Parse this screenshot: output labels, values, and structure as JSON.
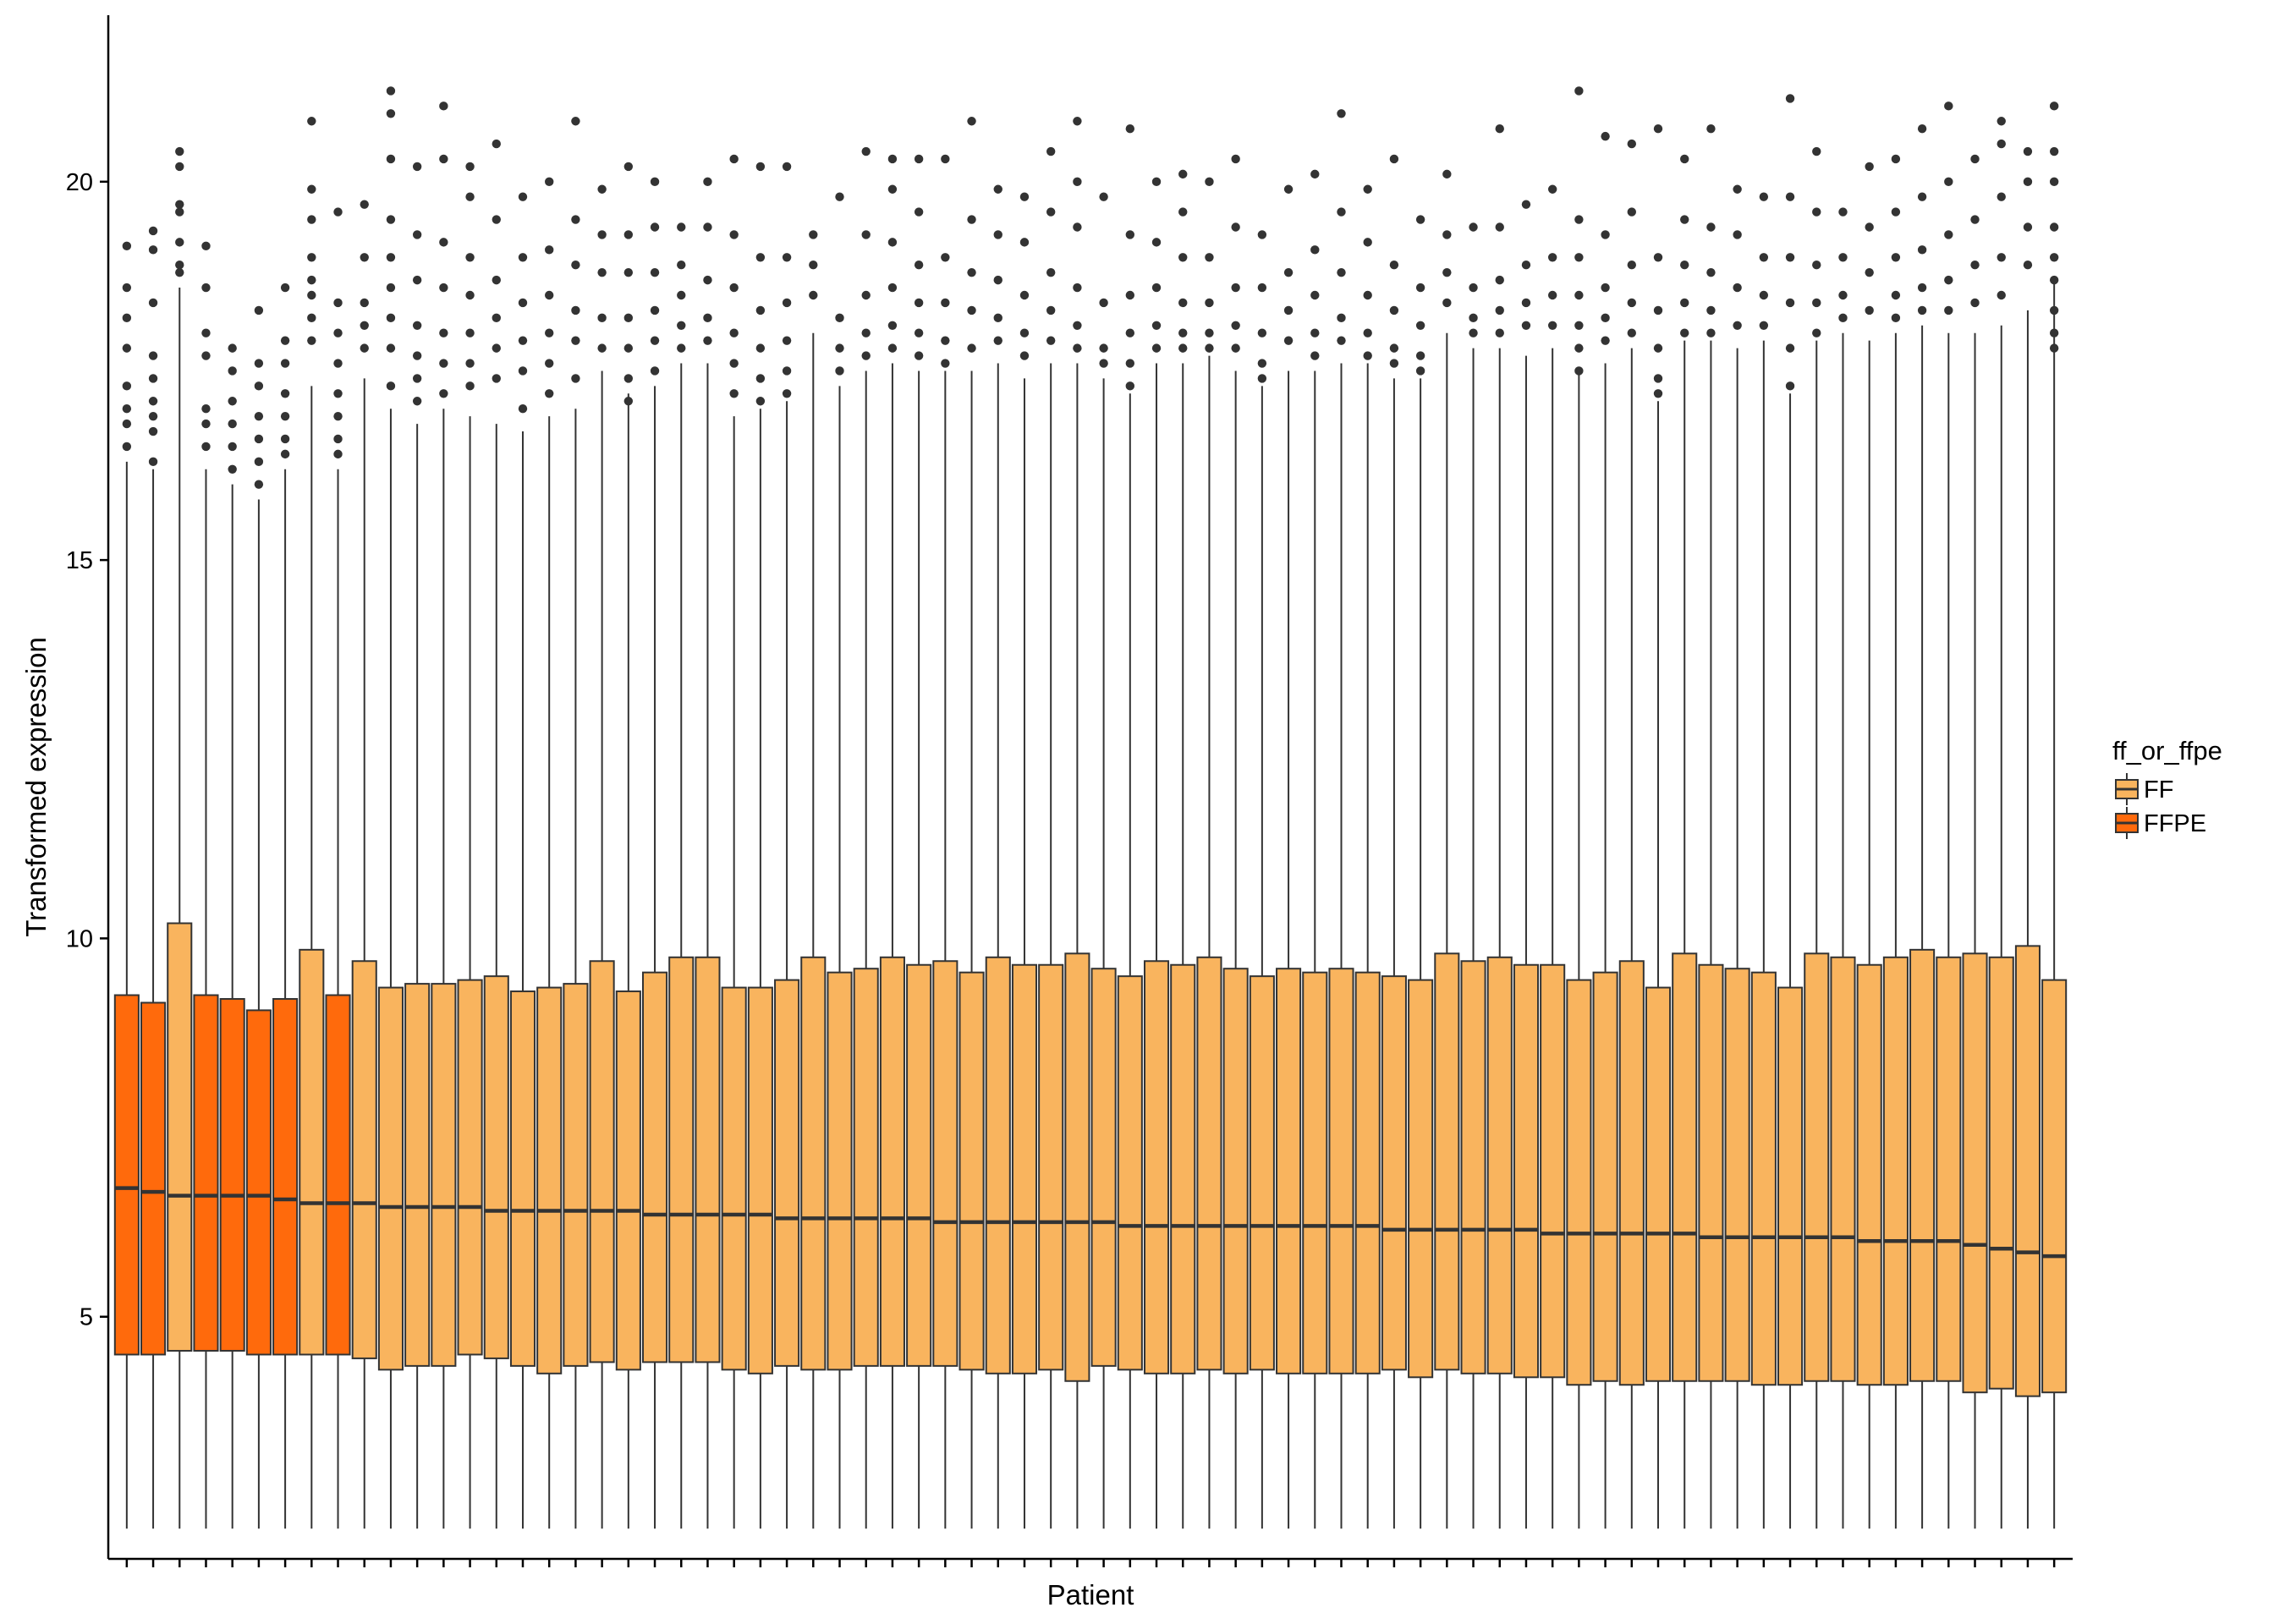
{
  "chart_data": {
    "type": "box",
    "xlabel": "Patient",
    "ylabel": "Transformed expression",
    "ylim": [
      1.8,
      22.2
    ],
    "yticks": [
      5,
      10,
      15,
      20
    ],
    "ytick_labels": [
      "5",
      "10",
      "15",
      "20"
    ],
    "grid": false,
    "legend": {
      "title": "ff_or_ffpe",
      "placement": "right",
      "entries": [
        {
          "label": "FF",
          "color": "#F9B45E"
        },
        {
          "label": "FFPE",
          "color": "#FF6A0C"
        }
      ]
    },
    "colors": {
      "FF": "#F9B45E",
      "FFPE": "#FF6A0C",
      "outlier": "#333333",
      "line": "#333333"
    },
    "whisker_low": 2.2,
    "boxes": [
      {
        "group": "FFPE",
        "median": 6.7,
        "q1": 4.5,
        "q3": 9.25,
        "whisker_high": 16.3,
        "outliers": [
          19.15,
          18.6,
          18.2,
          17.8,
          17.3,
          17.0,
          16.8,
          16.5
        ]
      },
      {
        "group": "FFPE",
        "median": 6.65,
        "q1": 4.5,
        "q3": 9.15,
        "whisker_high": 16.2,
        "outliers": [
          19.35,
          19.1,
          18.4,
          17.7,
          17.4,
          17.1,
          16.9,
          16.7,
          16.3
        ]
      },
      {
        "group": "FF",
        "median": 6.6,
        "q1": 4.55,
        "q3": 10.2,
        "whisker_high": 18.6,
        "outliers": [
          20.4,
          20.2,
          19.7,
          19.6,
          19.2,
          18.9,
          18.8
        ]
      },
      {
        "group": "FFPE",
        "median": 6.6,
        "q1": 4.55,
        "q3": 9.25,
        "whisker_high": 16.2,
        "outliers": [
          19.15,
          18.6,
          18.0,
          17.7,
          17.0,
          16.8,
          16.5
        ]
      },
      {
        "group": "FFPE",
        "median": 6.6,
        "q1": 4.55,
        "q3": 9.2,
        "whisker_high": 16.0,
        "outliers": [
          17.8,
          17.5,
          17.1,
          16.8,
          16.5,
          16.2
        ]
      },
      {
        "group": "FFPE",
        "median": 6.6,
        "q1": 4.5,
        "q3": 9.05,
        "whisker_high": 15.8,
        "outliers": [
          18.3,
          17.6,
          17.3,
          16.9,
          16.6,
          16.3,
          16.0
        ]
      },
      {
        "group": "FFPE",
        "median": 6.55,
        "q1": 4.5,
        "q3": 9.2,
        "whisker_high": 16.2,
        "outliers": [
          18.6,
          17.9,
          17.6,
          17.2,
          16.9,
          16.6,
          16.4
        ]
      },
      {
        "group": "FF",
        "median": 6.5,
        "q1": 4.5,
        "q3": 9.85,
        "whisker_high": 17.3,
        "outliers": [
          20.8,
          19.9,
          19.5,
          19.0,
          18.7,
          18.5,
          18.2,
          17.9
        ]
      },
      {
        "group": "FFPE",
        "median": 6.5,
        "q1": 4.5,
        "q3": 9.25,
        "whisker_high": 16.2,
        "outliers": [
          19.6,
          18.4,
          18.0,
          17.6,
          17.2,
          16.9,
          16.6,
          16.4
        ]
      },
      {
        "group": "FF",
        "median": 6.5,
        "q1": 4.45,
        "q3": 9.7,
        "whisker_high": 17.4,
        "outliers": [
          19.7,
          19.0,
          18.4,
          18.1,
          17.8
        ]
      },
      {
        "group": "FF",
        "median": 6.45,
        "q1": 4.3,
        "q3": 9.35,
        "whisker_high": 17.0,
        "outliers": [
          21.2,
          20.9,
          20.3,
          19.5,
          19.0,
          18.6,
          18.2,
          17.8,
          17.3
        ]
      },
      {
        "group": "FF",
        "median": 6.45,
        "q1": 4.35,
        "q3": 9.4,
        "whisker_high": 16.8,
        "outliers": [
          20.2,
          19.3,
          18.7,
          18.1,
          17.7,
          17.4,
          17.1
        ]
      },
      {
        "group": "FF",
        "median": 6.45,
        "q1": 4.35,
        "q3": 9.4,
        "whisker_high": 17.0,
        "outliers": [
          21.0,
          20.3,
          19.2,
          18.6,
          18.0,
          17.6,
          17.2
        ]
      },
      {
        "group": "FF",
        "median": 6.45,
        "q1": 4.5,
        "q3": 9.45,
        "whisker_high": 16.9,
        "outliers": [
          20.2,
          19.8,
          19.0,
          18.5,
          18.0,
          17.6,
          17.3
        ]
      },
      {
        "group": "FF",
        "median": 6.4,
        "q1": 4.45,
        "q3": 9.5,
        "whisker_high": 16.8,
        "outliers": [
          20.5,
          19.5,
          18.7,
          18.2,
          17.8,
          17.4
        ]
      },
      {
        "group": "FF",
        "median": 6.4,
        "q1": 4.35,
        "q3": 9.3,
        "whisker_high": 16.7,
        "outliers": [
          19.8,
          19.0,
          18.4,
          17.9,
          17.5,
          17.0
        ]
      },
      {
        "group": "FF",
        "median": 6.4,
        "q1": 4.25,
        "q3": 9.35,
        "whisker_high": 16.9,
        "outliers": [
          20.0,
          19.1,
          18.5,
          18.0,
          17.6,
          17.2
        ]
      },
      {
        "group": "FF",
        "median": 6.4,
        "q1": 4.35,
        "q3": 9.4,
        "whisker_high": 17.0,
        "outliers": [
          20.8,
          19.5,
          18.9,
          18.3,
          17.9,
          17.4
        ]
      },
      {
        "group": "FF",
        "median": 6.4,
        "q1": 4.4,
        "q3": 9.7,
        "whisker_high": 17.5,
        "outliers": [
          19.9,
          19.3,
          18.8,
          18.2,
          17.8
        ]
      },
      {
        "group": "FF",
        "median": 6.4,
        "q1": 4.3,
        "q3": 9.3,
        "whisker_high": 17.2,
        "outliers": [
          20.2,
          19.3,
          18.8,
          18.2,
          17.8,
          17.4,
          17.1
        ]
      },
      {
        "group": "FF",
        "median": 6.35,
        "q1": 4.4,
        "q3": 9.55,
        "whisker_high": 17.3,
        "outliers": [
          20.0,
          19.4,
          18.8,
          18.3,
          17.9,
          17.5
        ]
      },
      {
        "group": "FF",
        "median": 6.35,
        "q1": 4.4,
        "q3": 9.75,
        "whisker_high": 17.6,
        "outliers": [
          19.4,
          18.9,
          18.5,
          18.1,
          17.8
        ]
      },
      {
        "group": "FF",
        "median": 6.35,
        "q1": 4.4,
        "q3": 9.75,
        "whisker_high": 17.6,
        "outliers": [
          20.0,
          19.4,
          18.7,
          18.2,
          17.9
        ]
      },
      {
        "group": "FF",
        "median": 6.35,
        "q1": 4.3,
        "q3": 9.35,
        "whisker_high": 16.9,
        "outliers": [
          20.3,
          19.3,
          18.6,
          18.0,
          17.6,
          17.2
        ]
      },
      {
        "group": "FF",
        "median": 6.35,
        "q1": 4.25,
        "q3": 9.35,
        "whisker_high": 17.0,
        "outliers": [
          20.2,
          19.0,
          18.3,
          17.8,
          17.4,
          17.1
        ]
      },
      {
        "group": "FF",
        "median": 6.3,
        "q1": 4.35,
        "q3": 9.45,
        "whisker_high": 17.1,
        "outliers": [
          20.2,
          19.0,
          18.4,
          17.9,
          17.5,
          17.2
        ]
      },
      {
        "group": "FF",
        "median": 6.3,
        "q1": 4.3,
        "q3": 9.75,
        "whisker_high": 18.0,
        "outliers": [
          19.3,
          18.9,
          18.5
        ]
      },
      {
        "group": "FF",
        "median": 6.3,
        "q1": 4.3,
        "q3": 9.55,
        "whisker_high": 17.3,
        "outliers": [
          19.8,
          18.2,
          17.8,
          17.5
        ]
      },
      {
        "group": "FF",
        "median": 6.3,
        "q1": 4.35,
        "q3": 9.6,
        "whisker_high": 17.5,
        "outliers": [
          20.4,
          19.3,
          18.5,
          18.0,
          17.7
        ]
      },
      {
        "group": "FF",
        "median": 6.3,
        "q1": 4.35,
        "q3": 9.75,
        "whisker_high": 17.6,
        "outliers": [
          20.3,
          19.9,
          19.2,
          18.6,
          18.1,
          17.8
        ]
      },
      {
        "group": "FF",
        "median": 6.3,
        "q1": 4.35,
        "q3": 9.65,
        "whisker_high": 17.5,
        "outliers": [
          20.3,
          19.6,
          18.9,
          18.4,
          18.0,
          17.7
        ]
      },
      {
        "group": "FF",
        "median": 6.25,
        "q1": 4.35,
        "q3": 9.7,
        "whisker_high": 17.5,
        "outliers": [
          20.3,
          19.0,
          18.4,
          17.9,
          17.6
        ]
      },
      {
        "group": "FF",
        "median": 6.25,
        "q1": 4.3,
        "q3": 9.55,
        "whisker_high": 17.5,
        "outliers": [
          20.8,
          19.5,
          18.8,
          18.3,
          17.8
        ]
      },
      {
        "group": "FF",
        "median": 6.25,
        "q1": 4.25,
        "q3": 9.75,
        "whisker_high": 17.6,
        "outliers": [
          19.9,
          19.3,
          18.7,
          18.2,
          17.9
        ]
      },
      {
        "group": "FF",
        "median": 6.25,
        "q1": 4.25,
        "q3": 9.65,
        "whisker_high": 17.4,
        "outliers": [
          19.8,
          19.2,
          18.5,
          18.0,
          17.7
        ]
      },
      {
        "group": "FF",
        "median": 6.25,
        "q1": 4.3,
        "q3": 9.65,
        "whisker_high": 17.6,
        "outliers": [
          20.4,
          19.6,
          18.8,
          18.3,
          17.9
        ]
      },
      {
        "group": "FF",
        "median": 6.25,
        "q1": 4.15,
        "q3": 9.8,
        "whisker_high": 17.6,
        "outliers": [
          20.8,
          20.0,
          19.4,
          18.6,
          18.1,
          17.8
        ]
      },
      {
        "group": "FF",
        "median": 6.25,
        "q1": 4.35,
        "q3": 9.6,
        "whisker_high": 17.4,
        "outliers": [
          19.8,
          18.4,
          17.8,
          17.6
        ]
      },
      {
        "group": "FF",
        "median": 6.2,
        "q1": 4.3,
        "q3": 9.5,
        "whisker_high": 17.2,
        "outliers": [
          20.7,
          19.3,
          18.5,
          18.0,
          17.6,
          17.3
        ]
      },
      {
        "group": "FF",
        "median": 6.2,
        "q1": 4.25,
        "q3": 9.7,
        "whisker_high": 17.6,
        "outliers": [
          20.0,
          19.2,
          18.6,
          18.1,
          17.8
        ]
      },
      {
        "group": "FF",
        "median": 6.2,
        "q1": 4.25,
        "q3": 9.65,
        "whisker_high": 17.6,
        "outliers": [
          20.1,
          19.6,
          19.0,
          18.4,
          18.0,
          17.8
        ]
      },
      {
        "group": "FF",
        "median": 6.2,
        "q1": 4.3,
        "q3": 9.75,
        "whisker_high": 17.7,
        "outliers": [
          20.0,
          19.0,
          18.4,
          18.0,
          17.8
        ]
      },
      {
        "group": "FF",
        "median": 6.2,
        "q1": 4.25,
        "q3": 9.6,
        "whisker_high": 17.5,
        "outliers": [
          20.3,
          19.4,
          18.6,
          18.1,
          17.8
        ]
      },
      {
        "group": "FF",
        "median": 6.2,
        "q1": 4.3,
        "q3": 9.5,
        "whisker_high": 17.3,
        "outliers": [
          19.3,
          18.6,
          18.0,
          17.6,
          17.4
        ]
      },
      {
        "group": "FF",
        "median": 6.2,
        "q1": 4.25,
        "q3": 9.6,
        "whisker_high": 17.5,
        "outliers": [
          19.9,
          18.8,
          18.3,
          17.9
        ]
      },
      {
        "group": "FF",
        "median": 6.2,
        "q1": 4.25,
        "q3": 9.55,
        "whisker_high": 17.5,
        "outliers": [
          20.1,
          19.1,
          18.5,
          18.0,
          17.7
        ]
      },
      {
        "group": "FF",
        "median": 6.2,
        "q1": 4.25,
        "q3": 9.6,
        "whisker_high": 17.6,
        "outliers": [
          20.9,
          19.6,
          18.8,
          18.2,
          17.9
        ]
      },
      {
        "group": "FF",
        "median": 6.2,
        "q1": 4.25,
        "q3": 9.55,
        "whisker_high": 17.6,
        "outliers": [
          19.9,
          19.2,
          18.5,
          18.0,
          17.7
        ]
      },
      {
        "group": "FF",
        "median": 6.15,
        "q1": 4.3,
        "q3": 9.5,
        "whisker_high": 17.4,
        "outliers": [
          20.3,
          18.9,
          18.3,
          17.8,
          17.6
        ]
      },
      {
        "group": "FF",
        "median": 6.15,
        "q1": 4.2,
        "q3": 9.45,
        "whisker_high": 17.4,
        "outliers": [
          19.5,
          18.6,
          18.1,
          17.7,
          17.5
        ]
      },
      {
        "group": "FF",
        "median": 6.15,
        "q1": 4.3,
        "q3": 9.8,
        "whisker_high": 18.0,
        "outliers": [
          20.1,
          19.3,
          18.8,
          18.4
        ]
      },
      {
        "group": "FF",
        "median": 6.15,
        "q1": 4.25,
        "q3": 9.7,
        "whisker_high": 17.8,
        "outliers": [
          19.4,
          18.6,
          18.2,
          18.0
        ]
      },
      {
        "group": "FF",
        "median": 6.15,
        "q1": 4.25,
        "q3": 9.75,
        "whisker_high": 17.8,
        "outliers": [
          20.7,
          19.4,
          18.7,
          18.3,
          18.0
        ]
      },
      {
        "group": "FF",
        "median": 6.15,
        "q1": 4.2,
        "q3": 9.65,
        "whisker_high": 17.7,
        "outliers": [
          19.7,
          18.9,
          18.4,
          18.1
        ]
      },
      {
        "group": "FF",
        "median": 6.1,
        "q1": 4.2,
        "q3": 9.65,
        "whisker_high": 17.8,
        "outliers": [
          19.9,
          19.0,
          18.5,
          18.1
        ]
      },
      {
        "group": "FF",
        "median": 6.1,
        "q1": 4.1,
        "q3": 9.45,
        "whisker_high": 17.5,
        "outliers": [
          21.2,
          19.5,
          19.0,
          18.5,
          18.1,
          17.8,
          17.5
        ]
      },
      {
        "group": "FF",
        "median": 6.1,
        "q1": 4.15,
        "q3": 9.55,
        "whisker_high": 17.6,
        "outliers": [
          20.6,
          19.3,
          18.6,
          18.2,
          17.9
        ]
      },
      {
        "group": "FF",
        "median": 6.1,
        "q1": 4.1,
        "q3": 9.7,
        "whisker_high": 17.8,
        "outliers": [
          20.5,
          19.6,
          18.9,
          18.4,
          18.0
        ]
      },
      {
        "group": "FF",
        "median": 6.1,
        "q1": 4.15,
        "q3": 9.35,
        "whisker_high": 17.1,
        "outliers": [
          20.7,
          19.0,
          18.3,
          17.8,
          17.4,
          17.2
        ]
      },
      {
        "group": "FF",
        "median": 6.1,
        "q1": 4.15,
        "q3": 9.8,
        "whisker_high": 17.9,
        "outliers": [
          20.3,
          19.5,
          18.9,
          18.4,
          18.0
        ]
      },
      {
        "group": "FF",
        "median": 6.05,
        "q1": 4.15,
        "q3": 9.65,
        "whisker_high": 17.9,
        "outliers": [
          20.7,
          19.4,
          18.8,
          18.3,
          18.0
        ]
      },
      {
        "group": "FF",
        "median": 6.05,
        "q1": 4.15,
        "q3": 9.6,
        "whisker_high": 17.8,
        "outliers": [
          19.9,
          19.3,
          18.6,
          18.1
        ]
      },
      {
        "group": "FF",
        "median": 6.05,
        "q1": 4.1,
        "q3": 9.55,
        "whisker_high": 17.9,
        "outliers": [
          19.8,
          19.0,
          18.5,
          18.1
        ]
      },
      {
        "group": "FF",
        "median": 6.05,
        "q1": 4.1,
        "q3": 9.35,
        "whisker_high": 17.2,
        "outliers": [
          21.1,
          19.8,
          19.0,
          18.4,
          17.8,
          17.3
        ]
      },
      {
        "group": "FF",
        "median": 6.05,
        "q1": 4.15,
        "q3": 9.8,
        "whisker_high": 17.9,
        "outliers": [
          20.4,
          19.6,
          18.9,
          18.4,
          18.0
        ]
      },
      {
        "group": "FF",
        "median": 6.05,
        "q1": 4.15,
        "q3": 9.75,
        "whisker_high": 18.0,
        "outliers": [
          19.6,
          19.0,
          18.5,
          18.2
        ]
      },
      {
        "group": "FF",
        "median": 6.0,
        "q1": 4.1,
        "q3": 9.65,
        "whisker_high": 17.9,
        "outliers": [
          20.2,
          19.4,
          18.8,
          18.3
        ]
      },
      {
        "group": "FF",
        "median": 6.0,
        "q1": 4.1,
        "q3": 9.75,
        "whisker_high": 18.0,
        "outliers": [
          20.3,
          19.6,
          19.0,
          18.5,
          18.2
        ]
      },
      {
        "group": "FF",
        "median": 6.0,
        "q1": 4.15,
        "q3": 9.85,
        "whisker_high": 18.1,
        "outliers": [
          20.7,
          19.8,
          19.1,
          18.6,
          18.3
        ]
      },
      {
        "group": "FF",
        "median": 6.0,
        "q1": 4.15,
        "q3": 9.75,
        "whisker_high": 18.0,
        "outliers": [
          21.0,
          20.0,
          19.3,
          18.7,
          18.3
        ]
      },
      {
        "group": "FF",
        "median": 5.95,
        "q1": 4.0,
        "q3": 9.8,
        "whisker_high": 18.0,
        "outliers": [
          20.3,
          19.5,
          18.9,
          18.4
        ]
      },
      {
        "group": "FF",
        "median": 5.9,
        "q1": 4.05,
        "q3": 9.75,
        "whisker_high": 18.1,
        "outliers": [
          20.8,
          20.5,
          19.8,
          19.0,
          18.5
        ]
      },
      {
        "group": "FF",
        "median": 5.85,
        "q1": 3.95,
        "q3": 9.9,
        "whisker_high": 18.3,
        "outliers": [
          20.4,
          20.0,
          19.4,
          18.9
        ]
      },
      {
        "group": "FF",
        "median": 5.8,
        "q1": 4.0,
        "q3": 9.45,
        "whisker_high": 18.7,
        "outliers": [
          21.0,
          20.4,
          20.0,
          19.4,
          19.0,
          18.7,
          18.3,
          18.0,
          17.8
        ]
      }
    ]
  }
}
